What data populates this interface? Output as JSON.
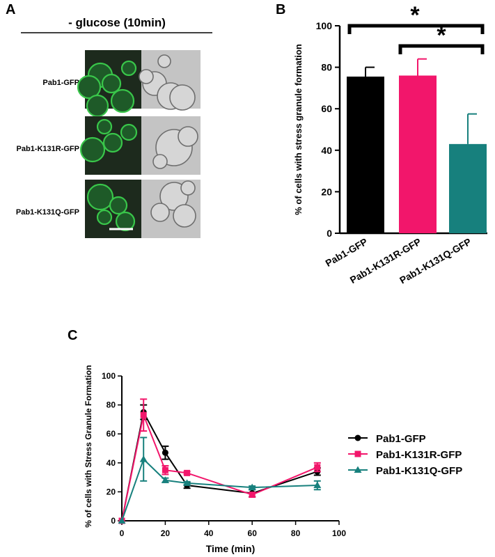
{
  "panel_labels": [
    "A",
    "B",
    "C"
  ],
  "panel_a": {
    "header": "- glucose (10min)",
    "rows": [
      "Pab1-GFP",
      "Pab1-K131R-GFP",
      "Pab1-K131Q-GFP"
    ]
  },
  "colors": {
    "Pab1-GFP": "#000000",
    "Pab1-K131R-GFP": "#f2166b",
    "Pab1-K131Q-GFP": "#17807d",
    "gfp_channel": "#1d2a1d",
    "brightfield": "#c4c4c4"
  },
  "chart_data": [
    {
      "type": "bar",
      "panel": "B",
      "categories": [
        "Pab1-GFP",
        "Pab1-K131R-GFP",
        "Pab1-K131Q-GFP"
      ],
      "values": [
        75.5,
        76,
        43
      ],
      "errors": [
        4.5,
        8,
        14.5
      ],
      "ylabel": "% of cells with stress granule formation",
      "xlabel": "",
      "ylim": [
        0,
        100
      ],
      "yticks": [
        0,
        20,
        40,
        60,
        80,
        100
      ],
      "significance": [
        {
          "from": "Pab1-GFP",
          "to": "Pab1-K131Q-GFP",
          "label": "*"
        },
        {
          "from": "Pab1-K131R-GFP",
          "to": "Pab1-K131Q-GFP",
          "label": "*"
        }
      ]
    },
    {
      "type": "line",
      "panel": "C",
      "x": [
        0,
        10,
        20,
        30,
        60,
        90
      ],
      "series": [
        {
          "name": "Pab1-GFP",
          "marker": "circle",
          "values": [
            0,
            75,
            47,
            24.5,
            19,
            34
          ],
          "errors": [
            0,
            5,
            4.5,
            2,
            2.5,
            2.5
          ]
        },
        {
          "name": "Pab1-K131R-GFP",
          "marker": "square",
          "values": [
            0,
            73,
            35,
            33,
            18,
            37
          ],
          "errors": [
            0,
            11,
            3,
            1,
            1.5,
            3
          ]
        },
        {
          "name": "Pab1-K131Q-GFP",
          "marker": "triangle",
          "values": [
            0,
            42.5,
            28,
            26,
            23,
            24.5
          ],
          "errors": [
            0,
            15,
            1.5,
            1,
            1,
            3
          ]
        }
      ],
      "xlabel": "Time (min)",
      "ylabel": "% of cells with Stress Granule Formation",
      "xlim": [
        0,
        100
      ],
      "ylim": [
        0,
        100
      ],
      "xticks": [
        0,
        20,
        40,
        60,
        80,
        100
      ],
      "yticks": [
        0,
        20,
        40,
        60,
        80,
        100
      ],
      "legend": "right"
    }
  ]
}
